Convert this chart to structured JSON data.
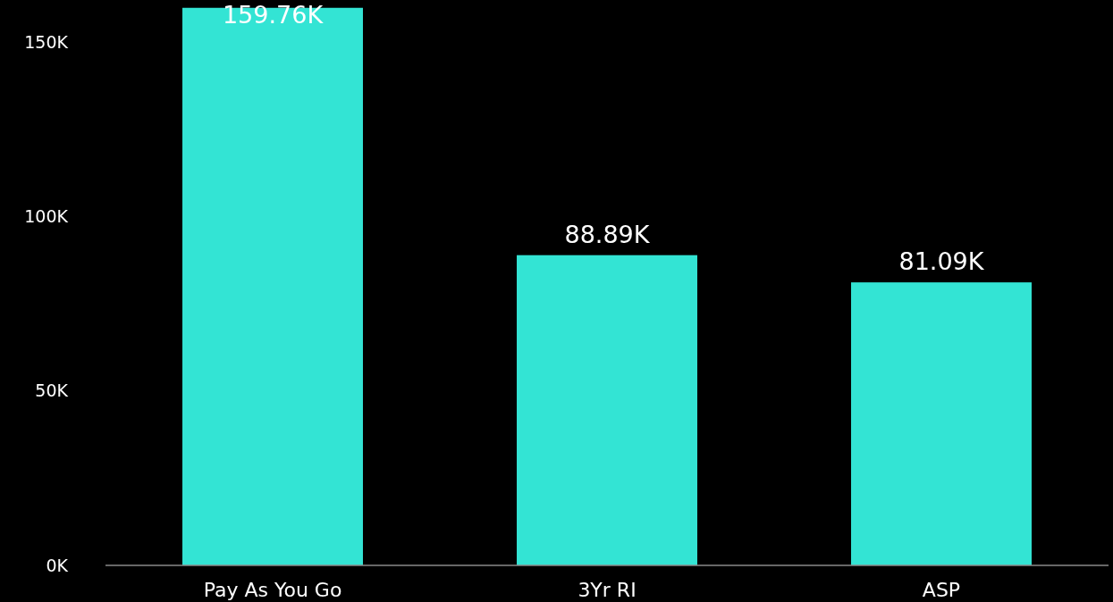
{
  "chart_data": {
    "type": "bar",
    "categories": [
      "Pay As You Go",
      "3Yr RI",
      "ASP"
    ],
    "values": [
      159760,
      88890,
      81090
    ],
    "value_labels": [
      "159.76K",
      "88.89K",
      "81.09K"
    ],
    "color": "#33e4d4",
    "ylim": [
      0,
      162000
    ],
    "yticks": [
      {
        "value": 0,
        "label": "0K"
      },
      {
        "value": 50000,
        "label": "50K"
      },
      {
        "value": 100000,
        "label": "100K"
      },
      {
        "value": 150000,
        "label": "150K"
      }
    ],
    "grid": false
  }
}
